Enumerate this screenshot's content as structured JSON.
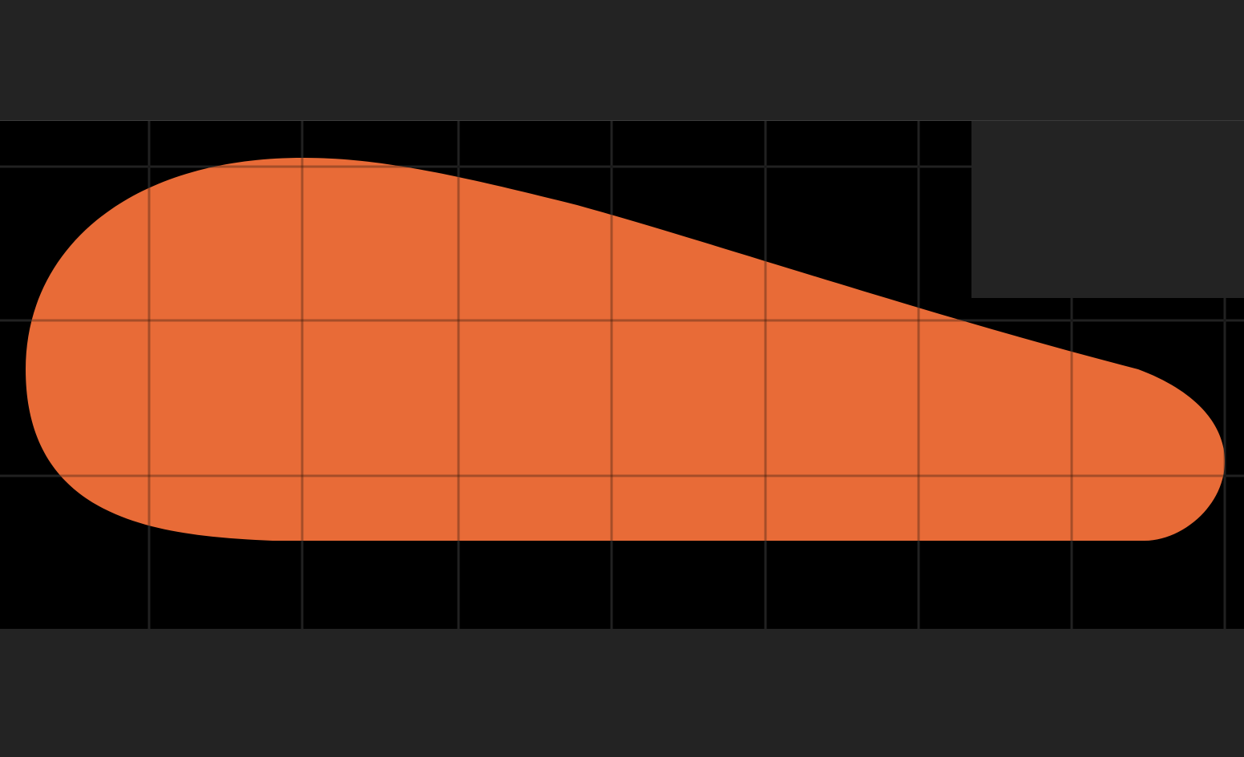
{
  "colors": {
    "chrome_background": "#232323",
    "canvas_background": "#000000",
    "grid_line": "#2e2e2e",
    "shape_fill": "#E86B37"
  },
  "canvas": {
    "grid_visible": true,
    "shape": {
      "name": "teardrop-shape",
      "fill_color": "#E86B37"
    }
  },
  "overlay_panel": {
    "visible": true
  }
}
